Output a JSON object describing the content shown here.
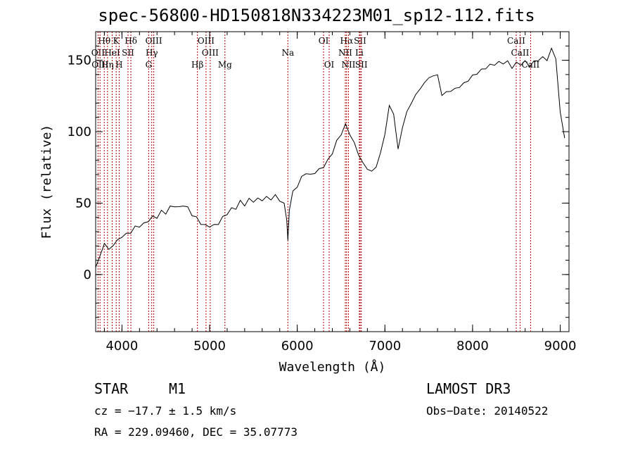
{
  "chart_data": {
    "type": "line",
    "title": "spec-56800-HD150818N334223M01_sp12-112.fits",
    "xlabel": "Wavelength (Å)",
    "ylabel": "Flux (relative)",
    "xlim": [
      3700,
      9100
    ],
    "ylim": [
      -40,
      170
    ],
    "xticks": [
      4000,
      5000,
      6000,
      7000,
      8000,
      9000
    ],
    "yticks": [
      0,
      50,
      100,
      150
    ],
    "series": [
      {
        "name": "flux",
        "x": [
          3700,
          3750,
          3800,
          3850,
          3900,
          3950,
          4000,
          4050,
          4100,
          4150,
          4200,
          4250,
          4300,
          4350,
          4400,
          4450,
          4500,
          4550,
          4600,
          4650,
          4700,
          4750,
          4800,
          4850,
          4900,
          4950,
          5000,
          5050,
          5100,
          5150,
          5200,
          5250,
          5300,
          5350,
          5400,
          5450,
          5500,
          5550,
          5600,
          5650,
          5700,
          5750,
          5800,
          5850,
          5880,
          5893,
          5910,
          5950,
          6000,
          6050,
          6100,
          6150,
          6200,
          6250,
          6300,
          6350,
          6400,
          6450,
          6500,
          6550,
          6600,
          6650,
          6700,
          6750,
          6800,
          6850,
          6900,
          6950,
          7000,
          7050,
          7100,
          7150,
          7200,
          7250,
          7300,
          7350,
          7400,
          7450,
          7500,
          7550,
          7600,
          7650,
          7700,
          7750,
          7800,
          7850,
          7900,
          7950,
          8000,
          8050,
          8100,
          8150,
          8200,
          8250,
          8300,
          8350,
          8400,
          8450,
          8500,
          8550,
          8600,
          8650,
          8700,
          8750,
          8800,
          8850,
          8900,
          8950,
          9000,
          9050
        ],
        "values": [
          5,
          12,
          20,
          15,
          18,
          22,
          25,
          28,
          30,
          35,
          36,
          38,
          40,
          42,
          41,
          44,
          42,
          45,
          46,
          44,
          47,
          45,
          42,
          40,
          38,
          36,
          37,
          36,
          38,
          40,
          43,
          44,
          45,
          48,
          47,
          50,
          51,
          52,
          54,
          55,
          56,
          57,
          55,
          50,
          40,
          22,
          45,
          55,
          60,
          65,
          70,
          68,
          72,
          74,
          78,
          82,
          88,
          95,
          100,
          105,
          98,
          90,
          82,
          75,
          72,
          70,
          75,
          85,
          100,
          120,
          115,
          90,
          105,
          115,
          120,
          125,
          128,
          132,
          135,
          137,
          138,
          125,
          128,
          130,
          132,
          134,
          136,
          138,
          140,
          141,
          142,
          143,
          144,
          145,
          146,
          147,
          148,
          146,
          149,
          150,
          151,
          149,
          150,
          152,
          151,
          150,
          155,
          150,
          110,
          95
        ]
      }
    ],
    "lines": [
      {
        "label": "Hθ",
        "wl": 3798,
        "row": 1
      },
      {
        "label": "K",
        "wl": 3934,
        "row": 1
      },
      {
        "label": "Hδ",
        "wl": 4102,
        "row": 1
      },
      {
        "label": "OIII",
        "wl": 4363,
        "row": 1
      },
      {
        "label": "OIII",
        "wl": 4959,
        "row": 1
      },
      {
        "label": "OI",
        "wl": 6300,
        "row": 1
      },
      {
        "label": "Hα",
        "wl": 6563,
        "row": 1
      },
      {
        "label": "SII",
        "wl": 6717,
        "row": 1
      },
      {
        "label": "CaII",
        "wl": 8498,
        "row": 1
      },
      {
        "label": "OII",
        "wl": 3727,
        "row": 2
      },
      {
        "label": "HeI",
        "wl": 3889,
        "row": 2
      },
      {
        "label": "SII",
        "wl": 4069,
        "row": 2
      },
      {
        "label": "Hγ",
        "wl": 4340,
        "row": 2
      },
      {
        "label": "OIII",
        "wl": 5007,
        "row": 2
      },
      {
        "label": "Na",
        "wl": 5893,
        "row": 2
      },
      {
        "label": "NII",
        "wl": 6548,
        "row": 2
      },
      {
        "label": "Li",
        "wl": 6708,
        "row": 2
      },
      {
        "label": "CaII",
        "wl": 8542,
        "row": 2
      },
      {
        "label": "OIII",
        "wl": 3750,
        "row": 3
      },
      {
        "label": "Hη",
        "wl": 3835,
        "row": 3
      },
      {
        "label": "H",
        "wl": 3968,
        "row": 3
      },
      {
        "label": "G",
        "wl": 4305,
        "row": 3
      },
      {
        "label": "Hβ",
        "wl": 4861,
        "row": 3
      },
      {
        "label": "Mg",
        "wl": 5175,
        "row": 3
      },
      {
        "label": "OI",
        "wl": 6364,
        "row": 3
      },
      {
        "label": "NII",
        "wl": 6584,
        "row": 3
      },
      {
        "label": "SII",
        "wl": 6731,
        "row": 3
      },
      {
        "label": "CaII",
        "wl": 8662,
        "row": 3
      }
    ]
  },
  "info": {
    "object_class": "STAR",
    "subclass": "M1",
    "cz": "cz = −17.7 ± 1.5 km/s",
    "coords": "RA = 229.09460, DEC =  35.07773",
    "survey": "LAMOST DR3",
    "obs_date": "Obs−Date: 20140522"
  }
}
